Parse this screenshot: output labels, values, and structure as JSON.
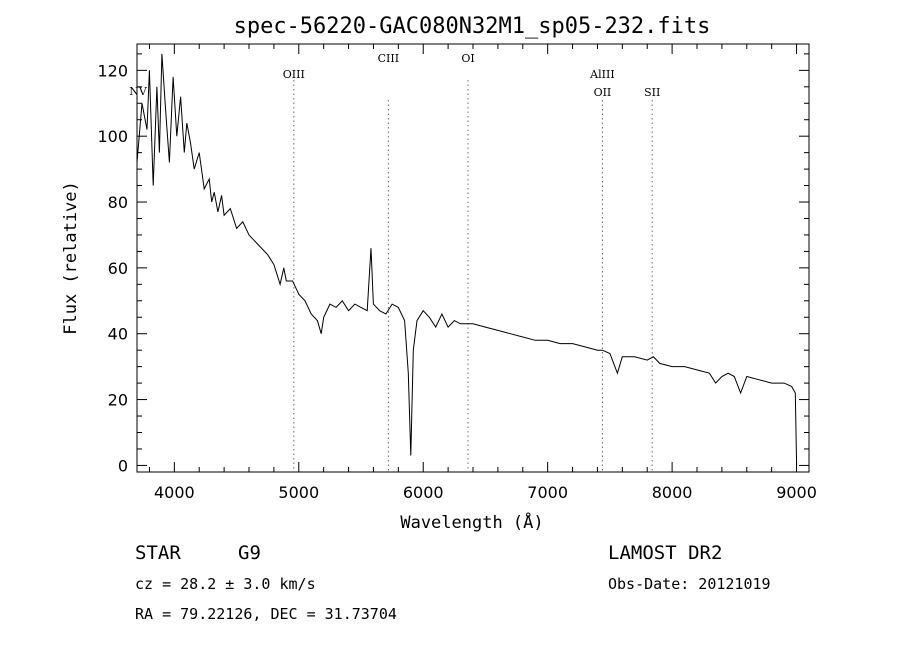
{
  "chart_data": {
    "type": "line",
    "title": "spec-56220-GAC080N32M1_sp05-232.fits",
    "xlabel": "Wavelength (Å)",
    "ylabel": "Flux (relative)",
    "xlim": [
      3700,
      9100
    ],
    "ylim": [
      -2,
      128
    ],
    "xticks": [
      4000,
      5000,
      6000,
      7000,
      8000,
      9000
    ],
    "yticks": [
      0,
      20,
      40,
      60,
      80,
      100,
      120
    ],
    "grid": false,
    "line_color": "#000000",
    "marker_color": "#6b6b6b",
    "spectral_lines": [
      {
        "label": "NV",
        "x": 3720
      },
      {
        "label": "OIII",
        "x": 4960
      },
      {
        "label": "CIII",
        "x": 5720
      },
      {
        "label": "OI",
        "x": 6360
      },
      {
        "label": "AlIII",
        "x": 7440
      },
      {
        "label": "OII",
        "x": 7440
      },
      {
        "label": "SII",
        "x": 7840
      }
    ],
    "series": [
      {
        "x": [
          3700,
          3740,
          3780,
          3800,
          3830,
          3860,
          3880,
          3900,
          3930,
          3960,
          3990,
          4020,
          4050,
          4080,
          4100,
          4130,
          4160,
          4200,
          4240,
          4280,
          4300,
          4320,
          4350,
          4380,
          4400,
          4450,
          4500,
          4550,
          4600,
          4650,
          4700,
          4750,
          4800,
          4850,
          4880,
          4900,
          4950,
          5000,
          5050,
          5100,
          5150,
          5180,
          5200,
          5250,
          5300,
          5350,
          5400,
          5450,
          5500,
          5550,
          5580,
          5600,
          5650,
          5700,
          5750,
          5800,
          5850,
          5880,
          5900,
          5920,
          5950,
          6000,
          6050,
          6100,
          6150,
          6200,
          6250,
          6300,
          6350,
          6400,
          6500,
          6600,
          6700,
          6800,
          6900,
          7000,
          7100,
          7200,
          7300,
          7400,
          7440,
          7500,
          7560,
          7600,
          7700,
          7800,
          7850,
          7900,
          8000,
          8100,
          8200,
          8300,
          8350,
          8400,
          8450,
          8500,
          8550,
          8600,
          8700,
          8800,
          8900,
          8960,
          8990,
          9000
        ],
        "values": [
          92,
          110,
          102,
          120,
          85,
          115,
          95,
          125,
          108,
          92,
          118,
          100,
          112,
          95,
          104,
          98,
          90,
          95,
          84,
          87,
          80,
          83,
          77,
          82,
          76,
          78,
          72,
          74,
          70,
          68,
          66,
          64,
          61,
          55,
          60,
          56,
          56,
          52,
          50,
          46,
          44,
          40,
          45,
          49,
          48,
          50,
          47,
          49,
          48,
          47,
          66,
          49,
          47,
          46,
          49,
          48,
          44,
          28,
          3,
          35,
          44,
          47,
          45,
          42,
          46,
          42,
          44,
          43,
          43,
          43,
          42,
          41,
          40,
          39,
          38,
          38,
          37,
          37,
          36,
          35,
          35,
          34,
          28,
          33,
          33,
          32,
          33,
          31,
          30,
          30,
          29,
          28,
          25,
          27,
          28,
          27,
          22,
          27,
          26,
          25,
          25,
          24,
          22,
          0
        ]
      }
    ]
  },
  "info": {
    "object_class": "STAR",
    "subclass": "G9",
    "survey": "LAMOST DR2",
    "redshift": "cz = 28.2 ± 3.0 km/s",
    "obs_date": "Obs-Date: 20121019",
    "coords": "RA =  79.22126, DEC =  31.73704"
  }
}
